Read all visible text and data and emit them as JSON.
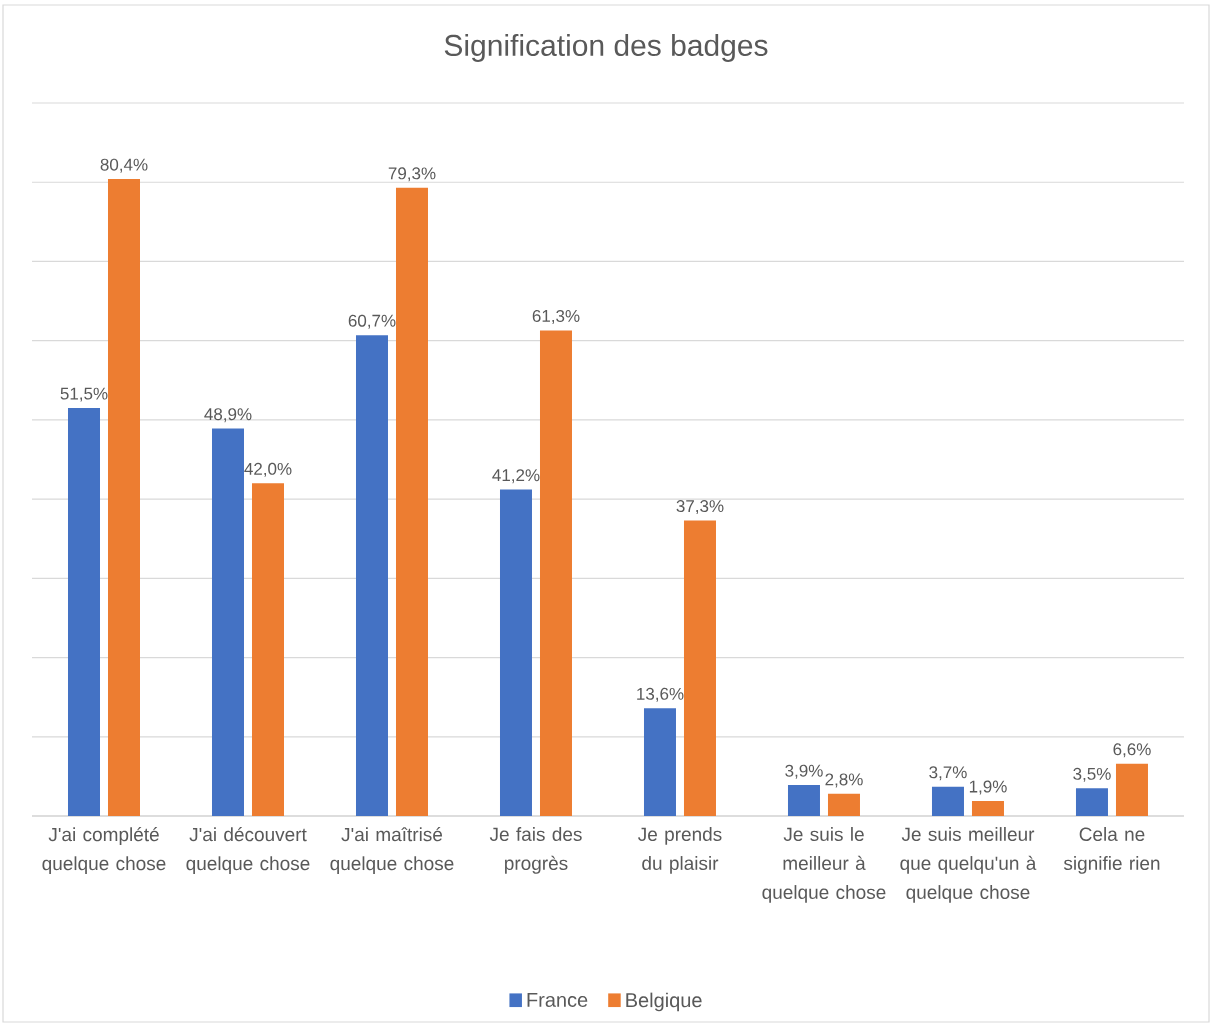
{
  "chart_data": {
    "type": "bar",
    "title": "Signification des badges",
    "categories": [
      "J'ai complété quelque chose",
      "J'ai découvert quelque chose",
      "J'ai maîtrisé quelque chose",
      "Je fais des progrès",
      "Je prends du plaisir",
      "Je suis le meilleur à quelque chose",
      "Je suis meilleur que quelqu'un à quelque chose",
      "Cela ne signifie rien"
    ],
    "series": [
      {
        "name": "France",
        "color": "#4472c4",
        "values": [
          51.5,
          48.9,
          60.7,
          41.2,
          13.6,
          3.9,
          3.7,
          3.5
        ],
        "value_labels": [
          "51,5%",
          "48,9%",
          "60,7%",
          "41,2%",
          "13,6%",
          "3,9%",
          "3,7%",
          "3,5%"
        ]
      },
      {
        "name": "Belgique",
        "color": "#ed7d31",
        "values": [
          80.4,
          42.0,
          79.3,
          61.3,
          37.3,
          2.8,
          1.9,
          6.6
        ],
        "value_labels": [
          "80,4%",
          "42,0%",
          "79,3%",
          "61,3%",
          "37,3%",
          "2,8%",
          "1,9%",
          "6,6%"
        ]
      }
    ],
    "ylim": [
      0,
      90
    ],
    "yticks": [
      {
        "value": 0,
        "label": null
      },
      {
        "value": 10,
        "label": null
      },
      {
        "value": 20,
        "label": null
      },
      {
        "value": 30,
        "label": null
      },
      {
        "value": 40,
        "label": null
      },
      {
        "value": 50,
        "label": null
      },
      {
        "value": 60,
        "label": null
      },
      {
        "value": 70,
        "label": null
      },
      {
        "value": 80,
        "label": null
      },
      {
        "value": 90,
        "label": null
      }
    ],
    "grid": "y",
    "legend": "bottom",
    "tick_labels": "x"
  }
}
